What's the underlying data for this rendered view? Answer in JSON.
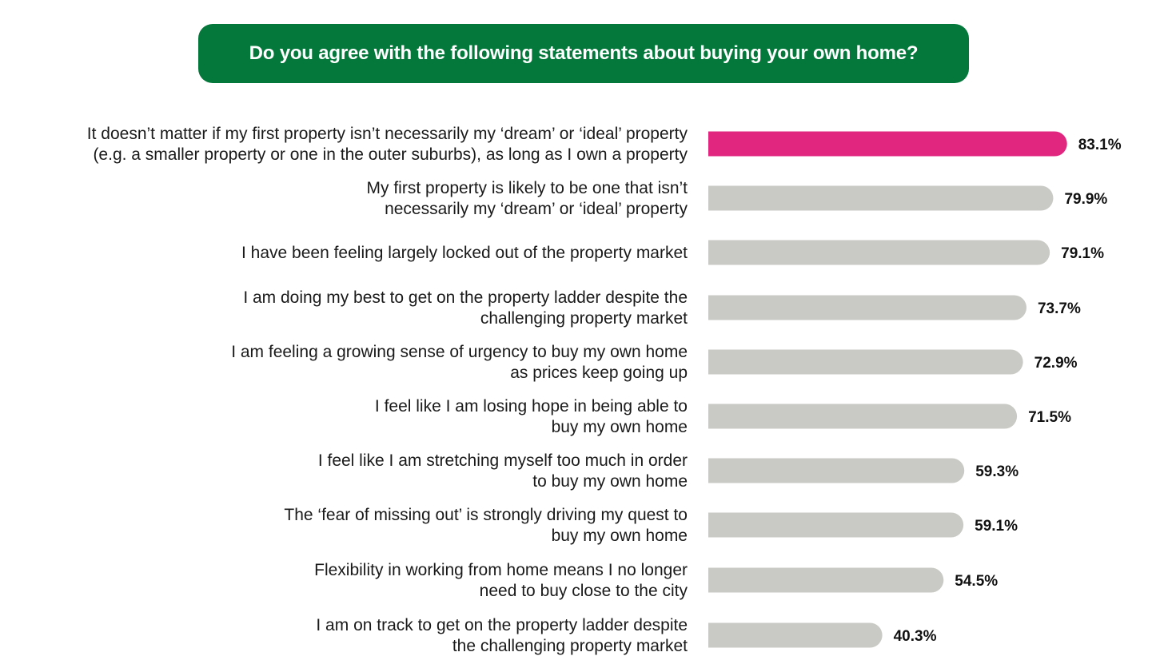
{
  "chart_data": {
    "type": "bar",
    "orientation": "horizontal",
    "title": "Do you agree with the following statements about buying your own home?",
    "categories": [
      [
        "It doesn’t matter if my first property isn’t necessarily my ‘dream’ or ‘ideal’ property",
        "(e.g. a smaller property or one in the outer suburbs), as long as I own a property"
      ],
      [
        "My first property is likely to be one that isn’t",
        "necessarily my ‘dream’ or ‘ideal’ property"
      ],
      [
        "I have been feeling largely locked out of the property market"
      ],
      [
        "I am doing my best to get on the property ladder despite the",
        "challenging property market"
      ],
      [
        "I am feeling a growing sense of urgency to buy my own home",
        "as prices keep going up"
      ],
      [
        "I feel like I am losing hope in being able to",
        "buy my own home"
      ],
      [
        "I feel like I am stretching myself too much in order",
        "to buy my own home"
      ],
      [
        "The ‘fear of missing out’ is strongly driving my quest to",
        "buy my own home"
      ],
      [
        "Flexibility in working from home means I no longer",
        "need to buy close to the city"
      ],
      [
        "I am on track to get on the property ladder despite",
        "the challenging property market"
      ]
    ],
    "values": [
      83.1,
      79.9,
      79.1,
      73.7,
      72.9,
      71.5,
      59.3,
      59.1,
      54.5,
      40.3
    ],
    "value_labels": [
      "83.1%",
      "79.9%",
      "79.1%",
      "73.7%",
      "72.9%",
      "71.5%",
      "59.3%",
      "59.1%",
      "54.5%",
      "40.3%"
    ],
    "unit": "%",
    "highlight_index": 0,
    "colors": {
      "highlight": "#e0267f",
      "default": "#c9c9c5",
      "title_background": "#03783a",
      "title_text": "#ffffff"
    },
    "grid": false,
    "legend": "none"
  }
}
